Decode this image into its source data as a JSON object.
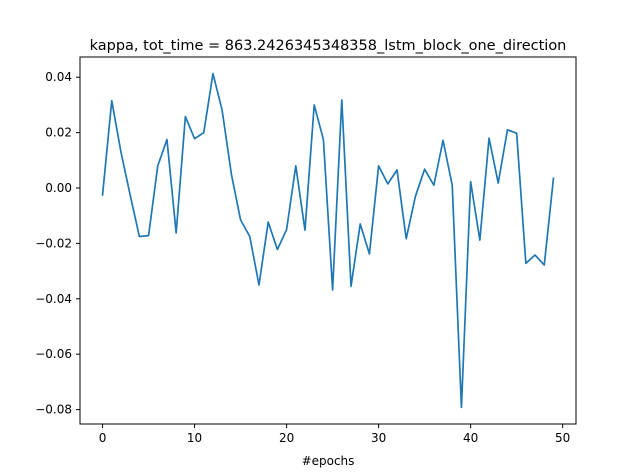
{
  "chart_data": {
    "type": "line",
    "title": "kappa, tot_time = 863.2426345348358_lstm_block_one_direction",
    "xlabel": "#epochs",
    "ylabel": "",
    "xlim": [
      -2.45,
      51.45
    ],
    "ylim": [
      -0.0852,
      0.0473
    ],
    "xticks": [
      0,
      10,
      20,
      30,
      40,
      50
    ],
    "yticks": [
      -0.08,
      -0.06,
      -0.04,
      -0.02,
      0.0,
      0.02,
      0.04
    ],
    "ytick_labels": [
      "−0.08",
      "−0.06",
      "−0.04",
      "−0.02",
      "0.00",
      "0.02",
      "0.04"
    ],
    "xtick_labels": [
      "0",
      "10",
      "20",
      "30",
      "40",
      "50"
    ],
    "grid": false,
    "series": [
      {
        "color": "#1f77b4",
        "x": [
          0,
          1,
          2,
          3,
          4,
          5,
          6,
          7,
          8,
          9,
          10,
          11,
          12,
          13,
          14,
          15,
          16,
          17,
          18,
          19,
          20,
          21,
          22,
          23,
          24,
          25,
          26,
          27,
          28,
          29,
          30,
          31,
          32,
          33,
          34,
          35,
          36,
          37,
          38,
          39,
          40,
          41,
          42,
          43,
          44,
          45,
          46,
          47,
          48,
          49
        ],
        "y": [
          -0.0025,
          0.0315,
          0.013,
          -0.0025,
          -0.0175,
          -0.0172,
          0.008,
          0.0175,
          -0.0162,
          0.0258,
          0.0178,
          0.02,
          0.0413,
          0.028,
          0.005,
          -0.0115,
          -0.0175,
          -0.035,
          -0.0123,
          -0.0222,
          -0.015,
          0.008,
          -0.0152,
          0.03,
          0.0175,
          -0.0368,
          0.0318,
          -0.0355,
          -0.013,
          -0.0238,
          0.008,
          0.0015,
          0.0065,
          -0.0183,
          -0.003,
          0.0068,
          0.001,
          0.0172,
          0.001,
          -0.0792,
          0.0023,
          -0.0188,
          0.018,
          0.0018,
          0.021,
          0.0198,
          -0.0272,
          -0.0242,
          -0.0278,
          0.0035
        ]
      }
    ]
  }
}
